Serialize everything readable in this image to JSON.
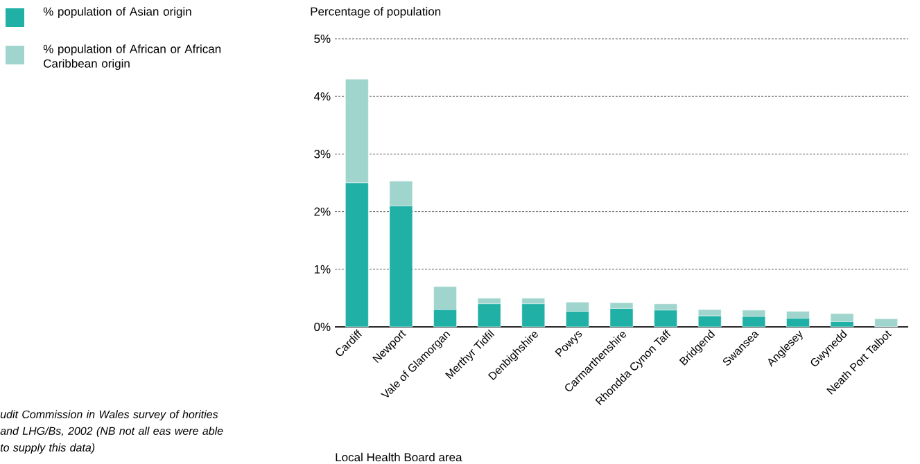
{
  "chart_data": {
    "type": "bar",
    "stacked": true,
    "xlabel": "Local Health Board area",
    "ylabel": "Percentage of population",
    "categories": [
      "Cardiff",
      "Newport",
      "Vale of Glamorgan",
      "Merthyr Tidfil",
      "Denbighshire",
      "Powys",
      "Carmarthenshire",
      "Rhondda Cynon Taff",
      "Bridgend",
      "Swansea",
      "Anglesey",
      "Gwynedd",
      "Neath Port Talbot"
    ],
    "series": [
      {
        "name": "% population of Asian origin",
        "color": "#20b0a5",
        "values": [
          2.5,
          2.1,
          0.3,
          0.4,
          0.4,
          0.27,
          0.32,
          0.29,
          0.19,
          0.18,
          0.15,
          0.09,
          0.0
        ]
      },
      {
        "name": "% population of African or African Caribbean origin",
        "color": "#a0d5cd",
        "values": [
          1.8,
          0.43,
          0.4,
          0.1,
          0.1,
          0.16,
          0.1,
          0.11,
          0.11,
          0.11,
          0.12,
          0.14,
          0.14
        ]
      }
    ],
    "ylim": [
      0,
      5
    ],
    "yticks": [
      {
        "value": 0,
        "label": "0%"
      },
      {
        "value": 1,
        "label": "1%"
      },
      {
        "value": 2,
        "label": "2%"
      },
      {
        "value": 3,
        "label": "3%"
      },
      {
        "value": 4,
        "label": "4%"
      },
      {
        "value": 5,
        "label": "5%"
      }
    ],
    "grid": "y",
    "legend": "left",
    "annotations": [
      "udit Commission in Wales survey of horities and LHG/Bs, 2002 (NB not all eas were able to supply this data)"
    ]
  }
}
